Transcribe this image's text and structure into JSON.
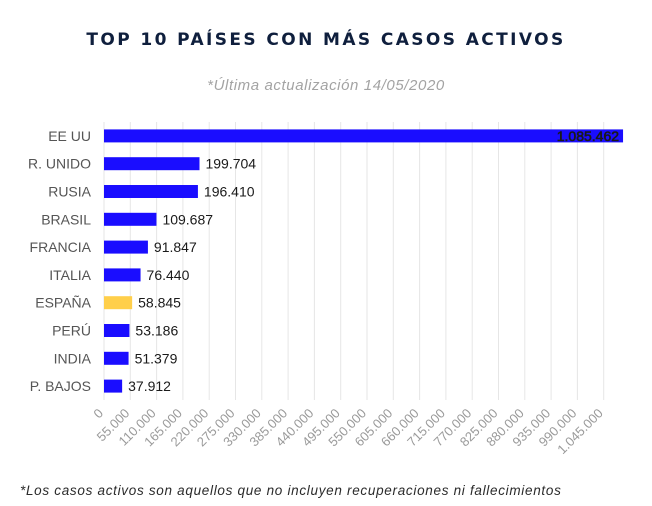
{
  "chart_data": {
    "type": "bar",
    "orientation": "horizontal",
    "title": "TOP 10 PAÍSES CON MÁS CASOS ACTIVOS",
    "subtitle": "*Última actualización 14/05/2020",
    "footnote": "*Los casos activos son aquellos que no incluyen recuperaciones ni fallecimientos",
    "categories": [
      "EE UU",
      "R. UNIDO",
      "RUSIA",
      "BRASIL",
      "FRANCIA",
      "ITALIA",
      "ESPAÑA",
      "PERÚ",
      "INDIA",
      "P. BAJOS"
    ],
    "values": [
      1085462,
      199704,
      196410,
      109687,
      91847,
      76440,
      58845,
      53186,
      51379,
      37912
    ],
    "value_labels": [
      "1.085.462",
      "199.704",
      "196.410",
      "109.687",
      "91.847",
      "76.440",
      "58.845",
      "53.186",
      "51.379",
      "37.912"
    ],
    "xlim": [
      0,
      1100000
    ],
    "x_ticks": [
      0,
      55000,
      110000,
      165000,
      220000,
      275000,
      330000,
      385000,
      440000,
      495000,
      550000,
      605000,
      660000,
      715000,
      770000,
      825000,
      880000,
      935000,
      990000,
      1045000
    ],
    "x_tick_labels": [
      "0",
      "55.000",
      "110.000",
      "165.000",
      "220.000",
      "275.000",
      "330.000",
      "385.000",
      "440.000",
      "495.000",
      "550.000",
      "605.000",
      "660.000",
      "715.000",
      "770.000",
      "825.000",
      "880.000",
      "935.000",
      "990.000",
      "1.045.000"
    ],
    "grid": true,
    "colors": {
      "bar": "#1a0dff",
      "highlight": "#ffcf4a",
      "highlight_category": "ESPAÑA",
      "title": "#0f1f3d",
      "grid": "#e6e6e6"
    }
  }
}
